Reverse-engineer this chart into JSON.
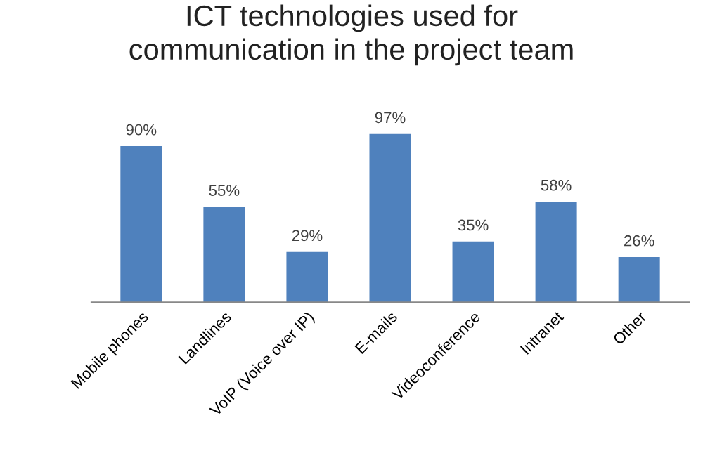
{
  "chart_data": {
    "type": "bar",
    "title": "ICT technologies used for\ncommunication in the project team",
    "categories": [
      "Mobile phones",
      "Landlines",
      "VoIP (Voice over IP)",
      "E-mails",
      "Videoconference",
      "Intranet",
      "Other"
    ],
    "values": [
      90,
      55,
      29,
      97,
      35,
      58,
      26
    ],
    "value_labels": [
      "90%",
      "55%",
      "29%",
      "97%",
      "35%",
      "58%",
      "26%"
    ],
    "color": "#4f81bd",
    "grid": false,
    "legend": false
  }
}
